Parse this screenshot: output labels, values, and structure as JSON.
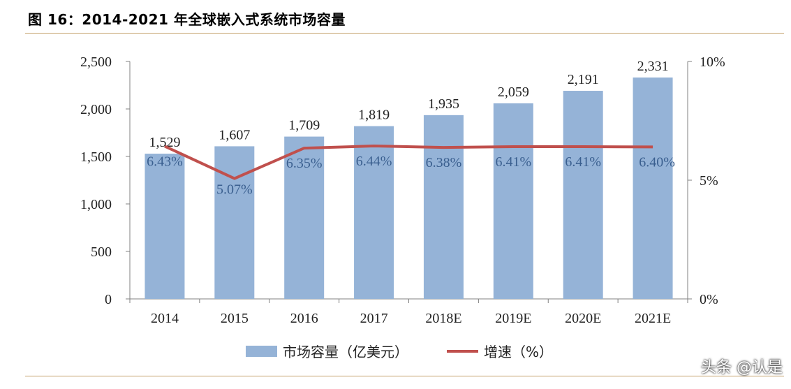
{
  "title": "图 16：2014-2021 年全球嵌入式系统市场容量",
  "watermark": "头条 @认是",
  "legend": {
    "bar_label": "市场容量（亿美元）",
    "line_label": "增速（%）"
  },
  "colors": {
    "bar": "#95b3d7",
    "line": "#c0504d",
    "axis": "#808080"
  },
  "chart_data": {
    "type": "bar",
    "categories": [
      "2014",
      "2015",
      "2016",
      "2017",
      "2018E",
      "2019E",
      "2020E",
      "2021E"
    ],
    "series": [
      {
        "name": "市场容量（亿美元）",
        "type": "bar",
        "axis": "left",
        "values": [
          1529,
          1607,
          1709,
          1819,
          1935,
          2059,
          2191,
          2331
        ],
        "labels": [
          "1,529",
          "1,607",
          "1,709",
          "1,819",
          "1,935",
          "2,059",
          "2,191",
          "2,331"
        ]
      },
      {
        "name": "增速（%）",
        "type": "line",
        "axis": "right",
        "values": [
          6.43,
          5.07,
          6.35,
          6.44,
          6.38,
          6.41,
          6.41,
          6.4
        ],
        "labels": [
          "6.43%",
          "5.07%",
          "6.35%",
          "6.44%",
          "6.38%",
          "6.41%",
          "6.41%",
          "6.40%"
        ]
      }
    ],
    "y_left": {
      "min": 0,
      "max": 2500,
      "ticks": [
        "0",
        "500",
        "1,000",
        "1,500",
        "2,000",
        "2,500"
      ]
    },
    "y_right": {
      "min": 0,
      "max": 10,
      "ticks": [
        "0%",
        "5%",
        "10%"
      ]
    },
    "grid": false,
    "legend_position": "bottom"
  }
}
